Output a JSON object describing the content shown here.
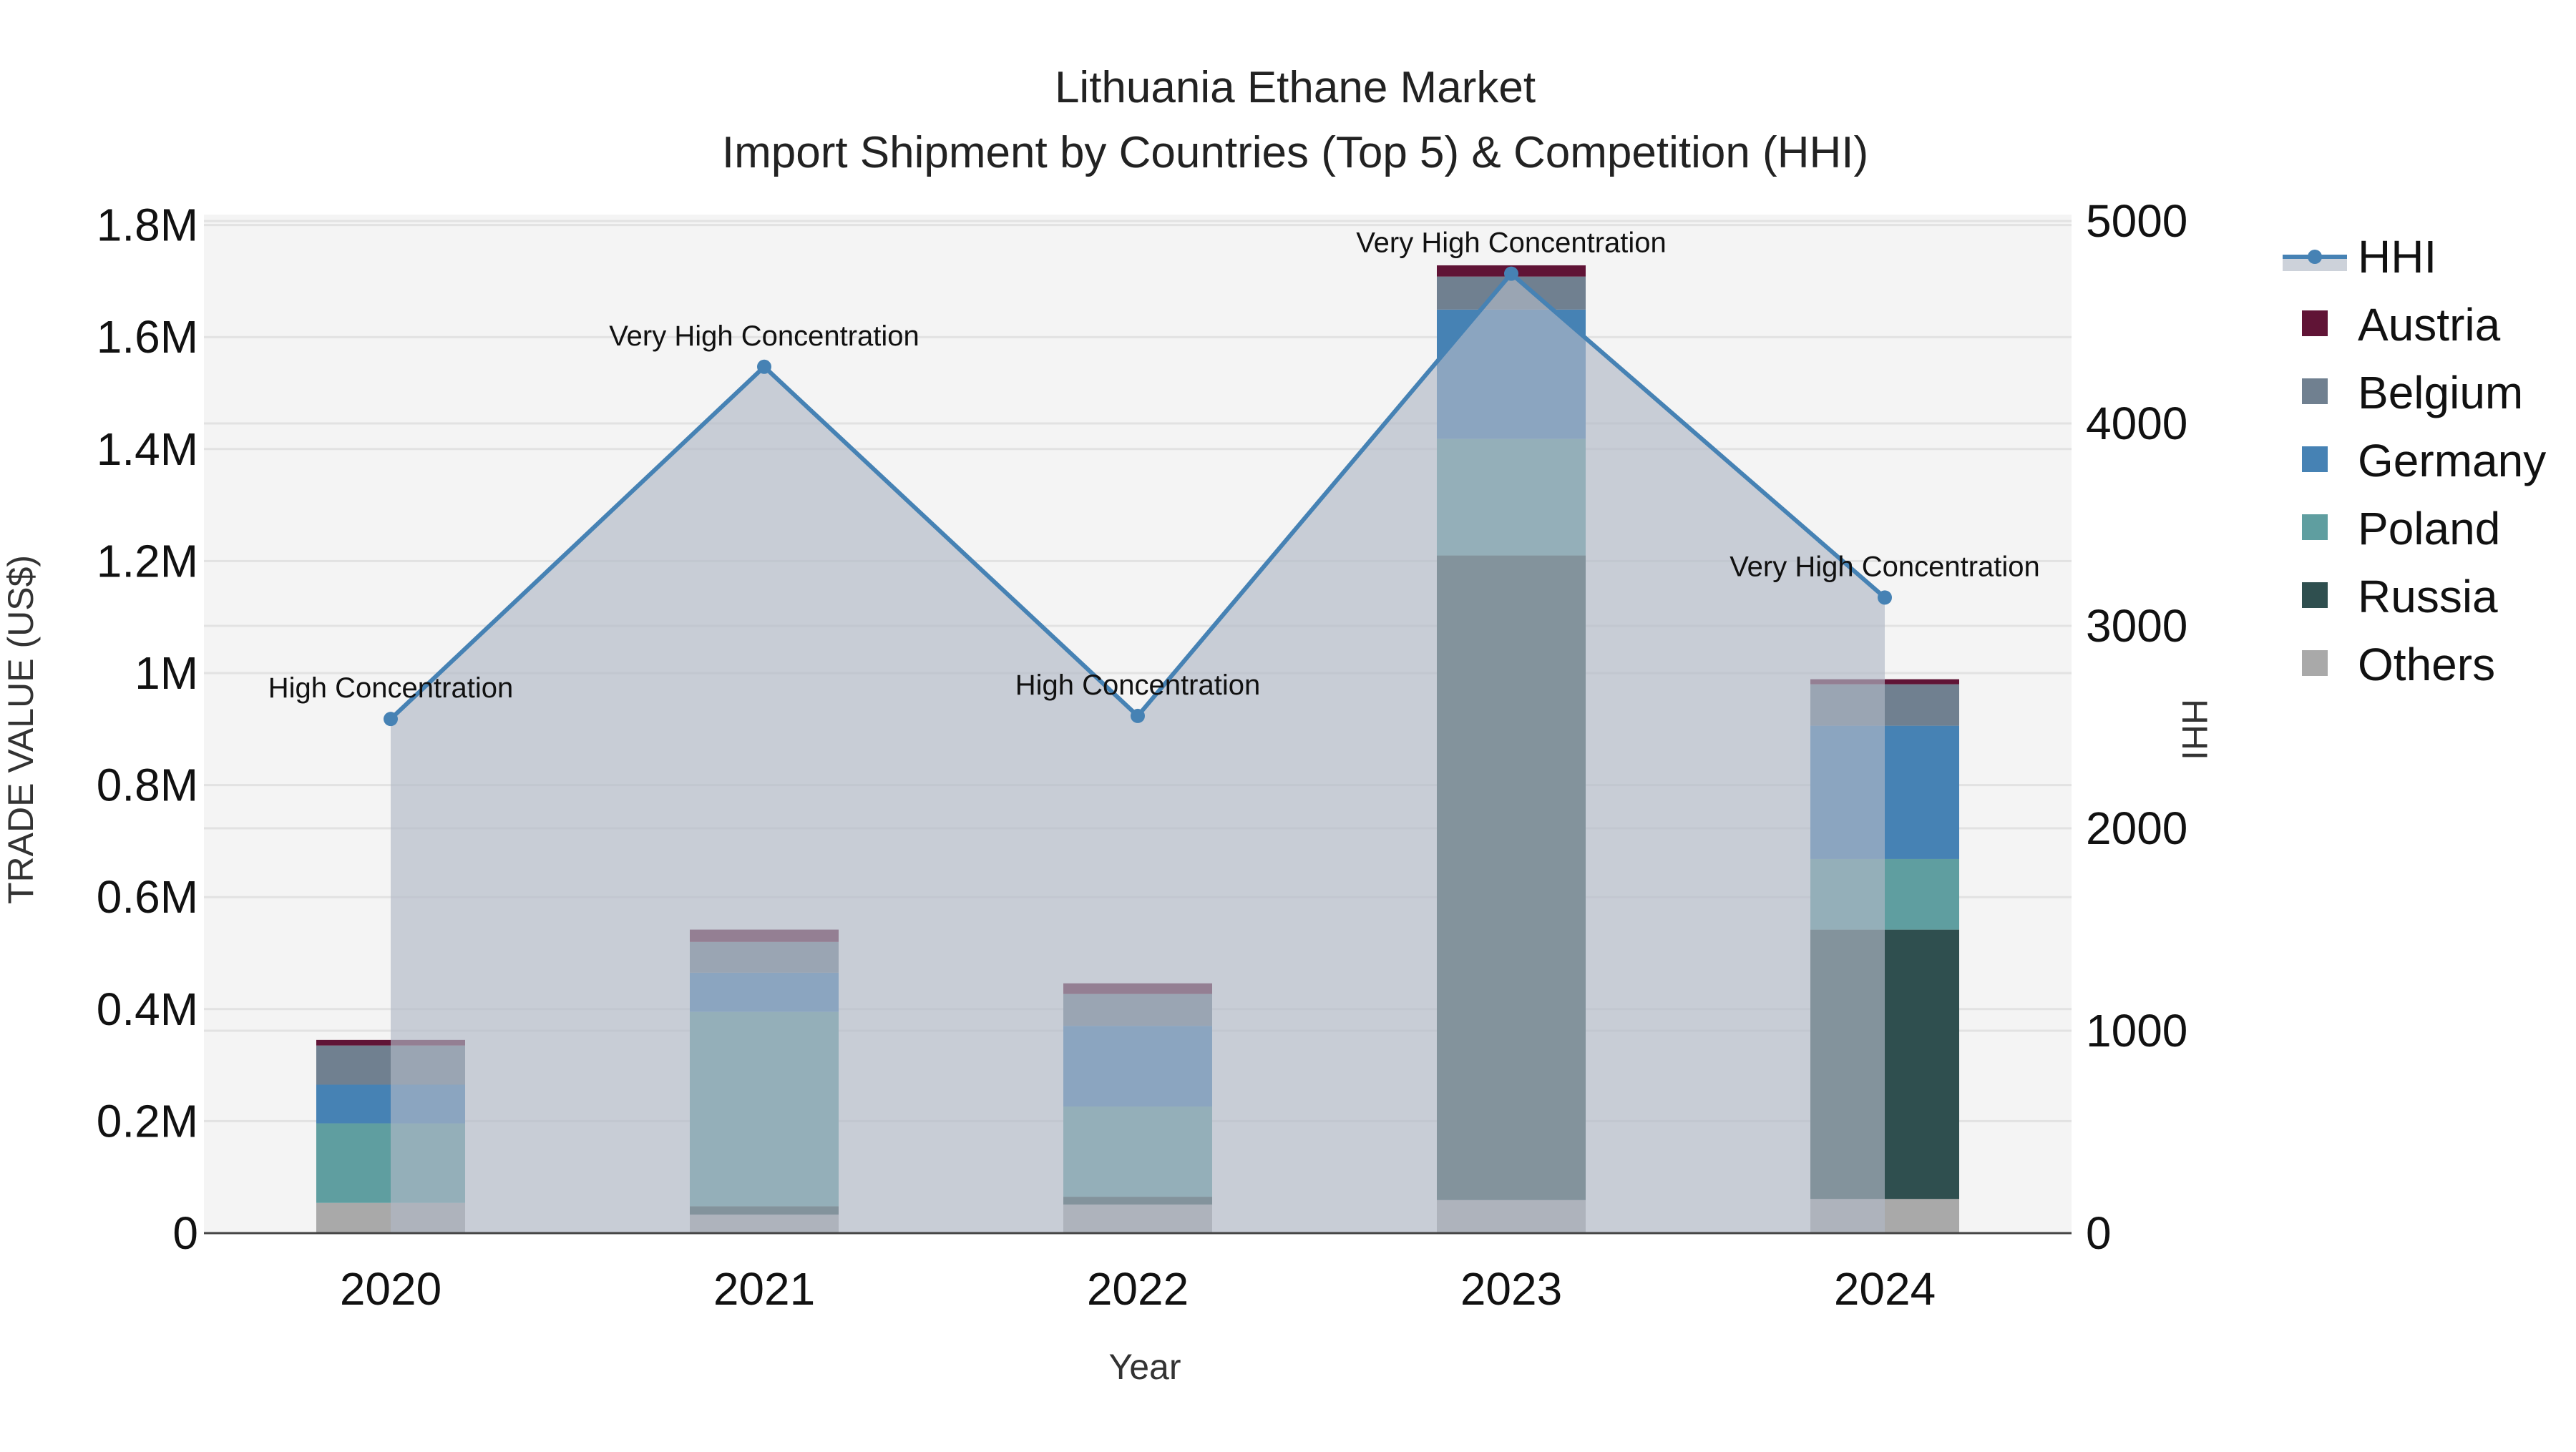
{
  "chart_data": {
    "type": "bar",
    "subtype": "stacked-bar-with-line-area",
    "title": "Lithuania Ethane Market",
    "subtitle": "Import Shipment by Countries (Top 5) & Competition (HHI)",
    "xlabel": "Year",
    "ylabel": "TRADE VALUE (US$)",
    "y2label": "HHI",
    "categories": [
      "2020",
      "2021",
      "2022",
      "2023",
      "2024"
    ],
    "ylim": [
      0,
      1800000
    ],
    "y2lim": [
      0,
      5000
    ],
    "yticks": [
      {
        "value": 0,
        "label": "0"
      },
      {
        "value": 200000,
        "label": "0.2M"
      },
      {
        "value": 400000,
        "label": "0.4M"
      },
      {
        "value": 600000,
        "label": "0.6M"
      },
      {
        "value": 800000,
        "label": "0.8M"
      },
      {
        "value": 1000000,
        "label": "1M"
      },
      {
        "value": 1200000,
        "label": "1.2M"
      },
      {
        "value": 1400000,
        "label": "1.4M"
      },
      {
        "value": 1600000,
        "label": "1.6M"
      },
      {
        "value": 1800000,
        "label": "1.8M"
      }
    ],
    "y2ticks": [
      {
        "value": 0,
        "label": "0"
      },
      {
        "value": 1000,
        "label": "1000"
      },
      {
        "value": 2000,
        "label": "2000"
      },
      {
        "value": 3000,
        "label": "3000"
      },
      {
        "value": 4000,
        "label": "4000"
      },
      {
        "value": 5000,
        "label": "5000"
      }
    ],
    "series": [
      {
        "name": "Others",
        "color": "#A9A9A9",
        "values": [
          54000,
          33000,
          51000,
          59000,
          61000
        ]
      },
      {
        "name": "Russia",
        "color": "#2F4F4F",
        "values": [
          0,
          15000,
          14000,
          1151000,
          481000
        ]
      },
      {
        "name": "Poland",
        "color": "#5F9EA0",
        "values": [
          142000,
          347000,
          161000,
          208000,
          126000
        ]
      },
      {
        "name": "Germany",
        "color": "#4682B4",
        "values": [
          69000,
          70000,
          144000,
          231000,
          238000
        ]
      },
      {
        "name": "Belgium",
        "color": "#708090",
        "values": [
          70000,
          55000,
          57000,
          59000,
          74000
        ]
      },
      {
        "name": "Austria",
        "color": "#601436",
        "values": [
          10000,
          22000,
          19000,
          20000,
          9000
        ]
      }
    ],
    "line_series": {
      "name": "HHI",
      "axis": "y2",
      "color": "#4682B4",
      "fill_color": "rgba(176,184,198,0.65)",
      "values": [
        2540,
        4280,
        2555,
        4740,
        3140
      ],
      "annotations": [
        "High Concentration",
        "Very High Concentration",
        "High Concentration",
        "Very High Concentration",
        "Very High Concentration"
      ]
    },
    "legend": {
      "position": "right",
      "entries": [
        "HHI",
        "Austria",
        "Belgium",
        "Germany",
        "Poland",
        "Russia",
        "Others"
      ]
    },
    "grid": true,
    "plot_background": "#F4F4F4"
  }
}
